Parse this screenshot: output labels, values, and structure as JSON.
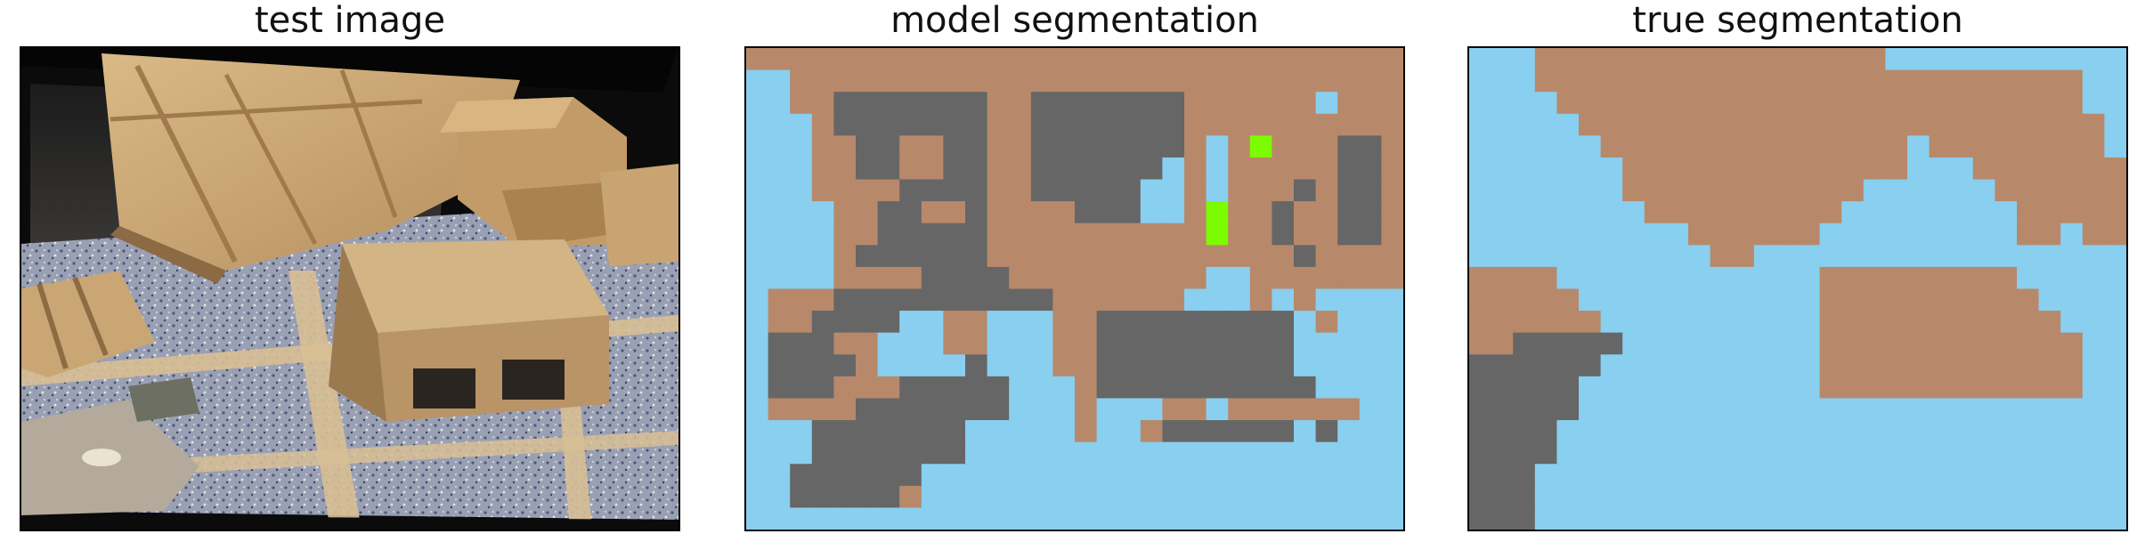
{
  "panels": {
    "test_image": {
      "title": "test image"
    },
    "model_segmentation": {
      "title": "model segmentation"
    },
    "true_segmentation": {
      "title": "true segmentation"
    }
  },
  "colors": {
    "brown": "#b7896a",
    "gray": "#666666",
    "blue": "#89cff0",
    "green": "#7cfc00"
  },
  "grid": {
    "cols": 30,
    "rows": 22
  },
  "model_segmentation": [
    "BBBBBBBBBBBBBBBBBBBBBBBBBBBBBB",
    "bbBBBBBBBBBBBBBBBBBBBBBBBBBBBB",
    "bbBBGGGGGGGBBGGGGGGGBBBBBBbBBB",
    "bbbBGGGGGGGBBGGGGGGGBBBBBBBBBB",
    "bbbBBGGBBGGBBGGGGGGGBbBgBBBGGB",
    "bbbBBGGBBGGBBGGGGGGbBbBBBBBGGB",
    "bbbBBBBGGGGBBGGGGGbbBbBBBGBGGB",
    "bbbbBBGGBBGBBBBGGGbbBgBBGBBGGB",
    "bbbbBBGGGGGBBBBBBBBBBgBBGBBGGB",
    "bbbbBGGGGGGBBBBBBBBBBBBBBGBBBB",
    "bbbbBBBBGGGGBBBBBBBBBbbBBBBBBB",
    "bBBBGGGGGGGGGGBBBBBBbbbBbBbbbb",
    "bBBGGGGbbBBbbbBBGGGGGGGGGbBbbb",
    "bGGGBBbbbBBbbbBBGGGGGGGGGbbbbb",
    "bGGGGBbbbbGbbbBBGGGGGGGGGbbbbb",
    "bGGGBBBGGGGGbbbBGGGGGGGGGGbbbb",
    "bBBBBGGGGGGGbbbBbbbBBbBBBBBBbb",
    "bbbGGGGGGGbbbbbBbbBGGGGGGbGbbb",
    "bbbGGGGGGGbbbbbbbbbbbbbbbbbbbb",
    "bbGGGGGGbbbbbbbbbbbbbbbbbbbbbb",
    "bbGGGGGBbbbbbbbbbbbbbbbbbbbbbb",
    "bbbbbbbbbbbbbbbbbbbbbbbbbbbbbb"
  ],
  "true_segmentation": [
    "bbbBBBBBBBBBBBBBBBBbbbbbbbbbbb",
    "bbbBBBBBBBBBBBBBBBBBBBBBBBBBbb",
    "bbbbBBBBBBBBBBBBBBBBBBBBBBBBbb",
    "bbbbbBBBBBBBBBBBBBBBBBBBBBBBBb",
    "bbbbbbBBBBBBBBBBBBBBbBBBBBBBBb",
    "bbbbbbbBBBBBBBBBBBBBbbbBBBBBBB",
    "bbbbbbbBBBBBBBBBBBbbbbbbBBBBBB",
    "bbbbbbbbBBBBBBBBBbbbbbbbbBBBBB",
    "bbbbbbbbbbBBBBBBbbbbbbbbbBBbBB",
    "bbbbbbbbbbbBBbbbbbbbbbbbbbbbbb",
    "BBBBbbbbbbbbbbbbBBBBBBBBBbbbbb",
    "BBBBBbbbbbbbbbbbBBBBBBBBBBbbbb",
    "BBBBBBbbbbbbbbbbBBBBBBBBBBBbbb",
    "BBGGGGGbbbbbbbbbBBBBBBBBBBBBbb",
    "GGGGGGbbbbbbbbbbBBBBBBBBBBBBbb",
    "GGGGGbbbbbbbbbbbBBBBBBBBBBBBbb",
    "GGGGGbbbbbbbbbbbbbbbbbbbbbbbbb",
    "GGGGbbbbbbbbbbbbbbbbbbbbbbbbbb",
    "GGGGbbbbbbbbbbbbbbbbbbbbbbbbbb",
    "GGGbbbbbbbbbbbbbbbbbbbbbbbbbbb",
    "GGGbbbbbbbbbbbbbbbbbbbbbbbbbbb",
    "GGGbbbbbbbbbbbbbbbbbbbbbbbbbbb"
  ]
}
